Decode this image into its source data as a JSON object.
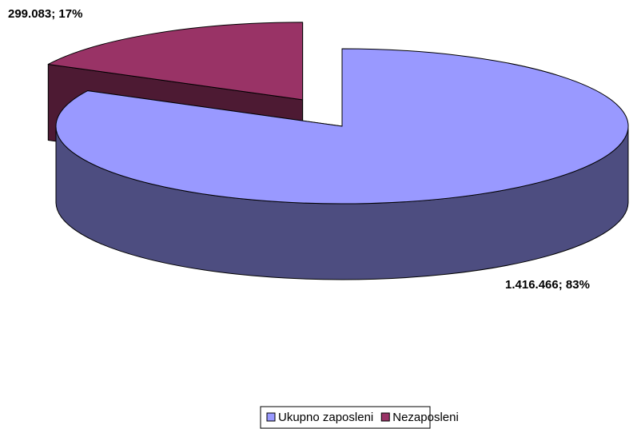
{
  "chart_data": {
    "type": "pie3d",
    "categories": [
      "Ukupno zaposleni",
      "Nezaposleni"
    ],
    "values": [
      1416466,
      299083
    ],
    "value_labels": [
      "1.416.466; 83%",
      "299.083; 17%"
    ],
    "colors": [
      "#9999ff",
      "#993366"
    ],
    "legend": "bottom"
  }
}
